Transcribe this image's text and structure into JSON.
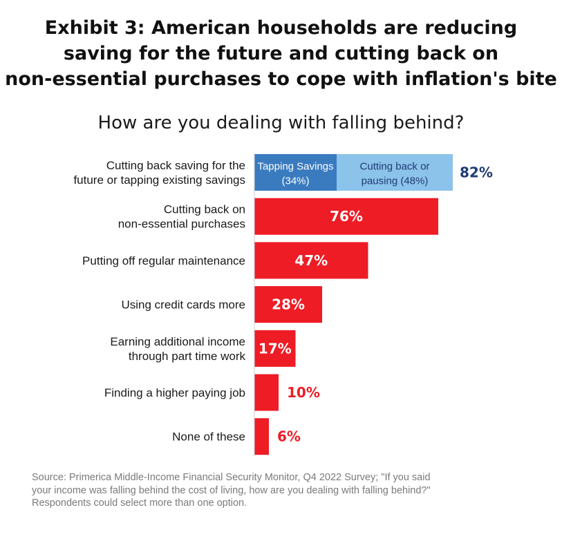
{
  "title": {
    "line1": "Exhibit 3: American households are reducing",
    "line2": "saving for the future and cutting back on",
    "line3": "non-essential purchases to cope with inflation's bite"
  },
  "subtitle": "How are you dealing with falling behind?",
  "footnote": {
    "line1": "Source: Primerica Middle-Income Financial Security Monitor, Q4 2022 Survey; \"If you said",
    "line2": "your income was falling behind the cost of living, how are you dealing with falling behind?\"",
    "line3": "Respondents could select more than one option."
  },
  "colors": {
    "red": "#ee1c25",
    "dark_blue_segment": "#3a7bbf",
    "light_blue_segment": "#8cc3ea",
    "navy_text": "#1f3b73",
    "bar_baseline": "#cccccc"
  },
  "chart_data": {
    "type": "bar",
    "orientation": "horizontal",
    "xlim": [
      0,
      100
    ],
    "categories": [
      [
        "Cutting back saving for the",
        "future or tapping existing savings"
      ],
      [
        "Cutting back on",
        "non-essential purchases"
      ],
      [
        "Putting off regular maintenance"
      ],
      [
        "Using credit cards more"
      ],
      [
        "Earning additional income",
        "through part time work"
      ],
      [
        "Finding a higher paying job"
      ],
      [
        "None of these"
      ]
    ],
    "values": [
      82,
      76,
      47,
      28,
      17,
      10,
      6
    ],
    "value_labels": [
      "82%",
      "76%",
      "47%",
      "28%",
      "17%",
      "10%",
      "6%"
    ],
    "stacked_first_bar": [
      {
        "label_line1": "Tapping Savings",
        "label_line2": "(34%)",
        "value": 34
      },
      {
        "label_line1": "Cutting back or",
        "label_line2": "pausing (48%)",
        "value": 48
      }
    ]
  }
}
